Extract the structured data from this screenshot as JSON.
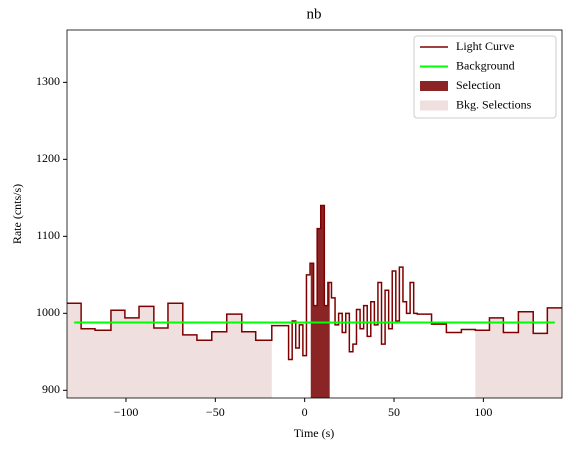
{
  "chart_data": {
    "type": "step",
    "title": "nb",
    "xlabel": "Time (s)",
    "ylabel": "Rate (cnts/s)",
    "xlim": [
      -133,
      144
    ],
    "ylim": [
      890,
      1368
    ],
    "xticks": [
      {
        "value": -100,
        "label": "−100"
      },
      {
        "value": -50,
        "label": "−50"
      },
      0,
      50,
      100
    ],
    "yticks": [
      900,
      1000,
      1100,
      1200,
      1300
    ],
    "legend": "upper right",
    "series": [
      {
        "name": "Light Curve",
        "color": "#7f0000",
        "bins": [
          -133,
          -125.1,
          -117.3,
          -108.4,
          -100.6,
          -92.7,
          -84.4,
          -76.5,
          -68.2,
          -60.3,
          -52,
          -43.6,
          -35.2,
          -27.4,
          -18.4,
          -9,
          -7,
          -5,
          -3,
          -1,
          1,
          3,
          5,
          7,
          9,
          11,
          13,
          15,
          17,
          19,
          21,
          23,
          25,
          27,
          29,
          31,
          33,
          35,
          37,
          39,
          41,
          43,
          45,
          47,
          49,
          51,
          53,
          55,
          57,
          59,
          61,
          63,
          71,
          79.3,
          87.7,
          95.5,
          103.4,
          111.2,
          119.6,
          127.9,
          135.8,
          144
        ],
        "values": [
          1013,
          980,
          978,
          1004,
          994,
          1009,
          981,
          1013,
          972,
          965,
          976,
          999,
          976,
          965,
          984,
          940,
          990,
          955,
          985,
          945,
          1050,
          1065,
          1010,
          1110,
          1140,
          1010,
          1040,
          1020,
          985,
          1000,
          975,
          1000,
          950,
          960,
          1005,
          980,
          1010,
          970,
          1015,
          985,
          1040,
          960,
          1030,
          980,
          1055,
          990,
          1060,
          1015,
          1000,
          1040,
          1000,
          999,
          986,
          975,
          979,
          978,
          994,
          975,
          1002,
          974,
          1007
        ]
      },
      {
        "name": "Background",
        "color": "#00ff00",
        "x": [
          -129,
          140
        ],
        "values": [
          988,
          988
        ]
      }
    ],
    "selections": [
      {
        "name": "Selection",
        "color": "#8b2525",
        "intervals": [
          [
            3.4,
            14
          ]
        ]
      },
      {
        "name": "Bkg. Selections",
        "color": "#efdfdf",
        "intervals": [
          [
            -133,
            -18.4
          ],
          [
            95.5,
            144
          ]
        ]
      }
    ]
  }
}
